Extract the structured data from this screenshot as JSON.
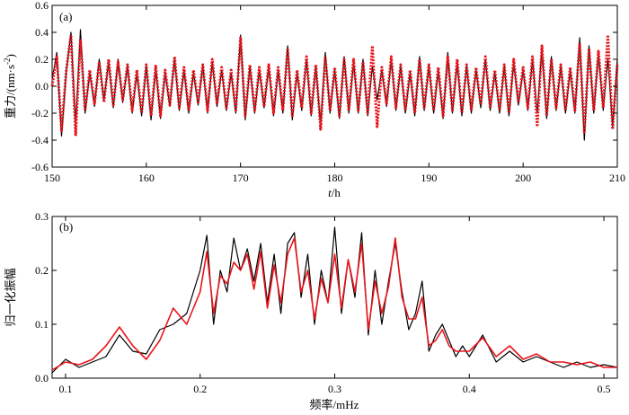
{
  "colors": {
    "black_series": "#000000",
    "red_series": "#e8141b"
  },
  "chart_data": [
    {
      "panel": "(a)",
      "type": "line",
      "xlabel_italic": "t",
      "xlabel_rest": "/h",
      "ylabel_main": "重力/(nm·s",
      "ylabel_sup": "-2",
      "ylabel_close": ")",
      "xlim": [
        150,
        210
      ],
      "ylim": [
        -0.6,
        0.6
      ],
      "xticks": [
        150,
        160,
        170,
        180,
        190,
        200,
        210
      ],
      "xtick_labels": [
        "150",
        "160",
        "170",
        "180",
        "190",
        "200",
        "210"
      ],
      "yticks": [
        -0.6,
        -0.4,
        -0.2,
        0.0,
        0.2,
        0.4,
        0.6
      ],
      "ytick_labels": [
        "-0.6",
        "-0.4",
        "-0.2",
        "0.0",
        "0.2",
        "0.4",
        "0.6"
      ],
      "series": [
        {
          "color": "#000000",
          "style": "solid",
          "x": [
            150.0,
            150.5,
            151.0,
            151.5,
            152.0,
            152.5,
            153.0,
            153.5,
            154.0,
            154.5,
            155.0,
            155.5,
            156.0,
            156.5,
            157.0,
            157.5,
            158.0,
            158.5,
            159.0,
            159.5,
            160.0,
            160.5,
            161.0,
            161.5,
            162.0,
            162.5,
            163.0,
            163.5,
            164.0,
            164.5,
            165.0,
            165.5,
            166.0,
            166.5,
            167.0,
            167.5,
            168.0,
            168.5,
            169.0,
            169.5,
            170.0,
            170.5,
            171.0,
            171.5,
            172.0,
            172.5,
            173.0,
            173.5,
            174.0,
            174.5,
            175.0,
            175.5,
            176.0,
            176.5,
            177.0,
            177.5,
            178.0,
            178.5,
            179.0,
            179.5,
            180.0,
            180.5,
            181.0,
            181.5,
            182.0,
            182.5,
            183.0,
            183.5,
            184.0,
            184.5,
            185.0,
            185.5,
            186.0,
            186.5,
            187.0,
            187.5,
            188.0,
            188.5,
            189.0,
            189.5,
            190.0,
            190.5,
            191.0,
            191.5,
            192.0,
            192.5,
            193.0,
            193.5,
            194.0,
            194.5,
            195.0,
            195.5,
            196.0,
            196.5,
            197.0,
            197.5,
            198.0,
            198.5,
            199.0,
            199.5,
            200.0,
            200.5,
            201.0,
            201.5,
            202.0,
            202.5,
            203.0,
            203.5,
            204.0,
            204.5,
            205.0,
            205.5,
            206.0,
            206.5,
            207.0,
            207.5,
            208.0,
            208.5,
            209.0,
            209.5,
            210.0
          ],
          "y": [
            0.05,
            0.25,
            -0.37,
            0.1,
            0.4,
            -0.3,
            0.42,
            -0.2,
            0.1,
            -0.15,
            0.2,
            -0.1,
            0.18,
            -0.16,
            0.2,
            -0.12,
            0.15,
            -0.2,
            0.1,
            -0.22,
            0.15,
            -0.25,
            0.14,
            -0.24,
            0.1,
            -0.15,
            0.2,
            -0.18,
            0.12,
            -0.2,
            0.1,
            -0.14,
            0.15,
            -0.2,
            0.18,
            -0.15,
            0.12,
            -0.18,
            0.1,
            -0.2,
            0.38,
            -0.25,
            0.15,
            -0.2,
            0.12,
            -0.16,
            0.15,
            -0.22,
            0.12,
            -0.2,
            0.3,
            -0.25,
            0.1,
            -0.18,
            0.2,
            -0.22,
            0.15,
            -0.3,
            0.25,
            -0.2,
            0.12,
            -0.24,
            0.22,
            -0.2,
            0.18,
            -0.2,
            0.2,
            -0.22,
            0.15,
            -0.1,
            0.12,
            -0.15,
            0.2,
            -0.18,
            0.15,
            -0.2,
            0.1,
            -0.22,
            0.22,
            -0.18,
            0.15,
            -0.2,
            0.12,
            -0.24,
            0.25,
            -0.2,
            0.18,
            -0.22,
            0.15,
            -0.2,
            0.12,
            -0.16,
            0.2,
            -0.18,
            0.1,
            -0.2,
            0.15,
            -0.22,
            0.18,
            -0.14,
            0.12,
            -0.18,
            0.2,
            -0.2,
            0.28,
            -0.24,
            0.22,
            -0.18,
            0.15,
            -0.2,
            0.12,
            -0.2,
            0.36,
            -0.4,
            0.3,
            -0.2,
            0.25,
            -0.18,
            0.2,
            -0.3,
            0.2
          ]
        },
        {
          "color": "#e8141b",
          "style": "dotted",
          "x": [
            150.0,
            150.5,
            151.0,
            151.5,
            152.0,
            152.5,
            153.0,
            153.5,
            154.0,
            154.5,
            155.0,
            155.5,
            156.0,
            156.5,
            157.0,
            157.5,
            158.0,
            158.5,
            159.0,
            159.5,
            160.0,
            160.5,
            161.0,
            161.5,
            162.0,
            162.5,
            163.0,
            163.5,
            164.0,
            164.5,
            165.0,
            165.5,
            166.0,
            166.5,
            167.0,
            167.5,
            168.0,
            168.5,
            169.0,
            169.5,
            170.0,
            170.5,
            171.0,
            171.5,
            172.0,
            172.5,
            173.0,
            173.5,
            174.0,
            174.5,
            175.0,
            175.5,
            176.0,
            176.5,
            177.0,
            177.5,
            178.0,
            178.5,
            179.0,
            179.5,
            180.0,
            180.5,
            181.0,
            181.5,
            182.0,
            182.5,
            183.0,
            183.5,
            184.0,
            184.5,
            185.0,
            185.5,
            186.0,
            186.5,
            187.0,
            187.5,
            188.0,
            188.5,
            189.0,
            189.5,
            190.0,
            190.5,
            191.0,
            191.5,
            192.0,
            192.5,
            193.0,
            193.5,
            194.0,
            194.5,
            195.0,
            195.5,
            196.0,
            196.5,
            197.0,
            197.5,
            198.0,
            198.5,
            199.0,
            199.5,
            200.0,
            200.5,
            201.0,
            201.5,
            202.0,
            202.5,
            203.0,
            203.5,
            204.0,
            204.5,
            205.0,
            205.5,
            206.0,
            206.5,
            207.0,
            207.5,
            208.0,
            208.5,
            209.0,
            209.5,
            210.0
          ],
          "y": [
            0.0,
            0.22,
            -0.33,
            0.12,
            0.38,
            -0.36,
            0.35,
            -0.18,
            0.12,
            -0.13,
            0.18,
            -0.12,
            0.2,
            -0.14,
            0.18,
            -0.1,
            0.16,
            -0.18,
            0.12,
            -0.2,
            0.16,
            -0.22,
            0.15,
            -0.22,
            0.12,
            -0.14,
            0.22,
            -0.16,
            0.14,
            -0.18,
            0.12,
            -0.12,
            0.16,
            -0.18,
            0.2,
            -0.13,
            0.14,
            -0.16,
            0.12,
            -0.18,
            0.36,
            -0.22,
            0.16,
            -0.18,
            0.14,
            -0.15,
            0.16,
            -0.2,
            0.14,
            -0.18,
            0.28,
            -0.22,
            0.12,
            -0.16,
            0.22,
            -0.2,
            0.16,
            -0.32,
            0.22,
            -0.18,
            0.14,
            -0.22,
            0.2,
            -0.18,
            0.2,
            -0.18,
            0.18,
            -0.2,
            0.3,
            -0.3,
            0.14,
            -0.13,
            0.22,
            -0.16,
            0.16,
            -0.18,
            0.12,
            -0.2,
            0.2,
            -0.16,
            0.16,
            -0.18,
            0.14,
            -0.22,
            0.22,
            -0.18,
            0.2,
            -0.2,
            0.16,
            -0.18,
            0.14,
            -0.14,
            0.22,
            -0.16,
            0.12,
            -0.18,
            0.16,
            -0.2,
            0.2,
            -0.12,
            0.14,
            -0.16,
            0.22,
            -0.3,
            0.3,
            -0.22,
            0.2,
            -0.16,
            0.16,
            -0.18,
            0.14,
            -0.18,
            0.32,
            -0.34,
            0.28,
            -0.18,
            0.26,
            -0.16,
            0.38,
            -0.32,
            0.16
          ]
        }
      ]
    },
    {
      "panel": "(b)",
      "type": "line",
      "xlabel": "频率/mHz",
      "ylabel": "归一化振幅",
      "xlim": [
        0.09,
        0.51
      ],
      "ylim": [
        0.0,
        0.3
      ],
      "xticks": [
        0.1,
        0.2,
        0.3,
        0.4,
        0.5
      ],
      "xtick_labels": [
        "0.1",
        "0.2",
        "0.3",
        "0.4",
        "0.5"
      ],
      "yticks": [
        0.0,
        0.1,
        0.2,
        0.3
      ],
      "ytick_labels": [
        "0.0",
        "0.1",
        "0.2",
        "0.3"
      ],
      "series": [
        {
          "color": "#000000",
          "style": "solid",
          "x": [
            0.09,
            0.1,
            0.11,
            0.12,
            0.13,
            0.14,
            0.15,
            0.16,
            0.17,
            0.18,
            0.19,
            0.2,
            0.205,
            0.21,
            0.215,
            0.22,
            0.225,
            0.23,
            0.235,
            0.24,
            0.245,
            0.25,
            0.255,
            0.26,
            0.265,
            0.27,
            0.275,
            0.28,
            0.285,
            0.29,
            0.295,
            0.3,
            0.305,
            0.31,
            0.315,
            0.32,
            0.325,
            0.33,
            0.335,
            0.34,
            0.345,
            0.35,
            0.355,
            0.36,
            0.365,
            0.37,
            0.375,
            0.38,
            0.385,
            0.39,
            0.395,
            0.4,
            0.41,
            0.42,
            0.43,
            0.44,
            0.45,
            0.46,
            0.47,
            0.48,
            0.49,
            0.5,
            0.51
          ],
          "y": [
            0.01,
            0.035,
            0.02,
            0.03,
            0.04,
            0.08,
            0.05,
            0.045,
            0.09,
            0.1,
            0.12,
            0.2,
            0.265,
            0.1,
            0.2,
            0.16,
            0.26,
            0.2,
            0.24,
            0.18,
            0.25,
            0.14,
            0.23,
            0.12,
            0.25,
            0.27,
            0.15,
            0.23,
            0.1,
            0.2,
            0.14,
            0.28,
            0.12,
            0.22,
            0.15,
            0.27,
            0.08,
            0.2,
            0.1,
            0.18,
            0.25,
            0.16,
            0.09,
            0.12,
            0.18,
            0.05,
            0.08,
            0.1,
            0.07,
            0.04,
            0.06,
            0.04,
            0.08,
            0.03,
            0.05,
            0.03,
            0.04,
            0.03,
            0.02,
            0.03,
            0.02,
            0.025,
            0.02
          ]
        },
        {
          "color": "#e8141b",
          "style": "solid",
          "x": [
            0.09,
            0.1,
            0.11,
            0.12,
            0.13,
            0.14,
            0.15,
            0.16,
            0.17,
            0.18,
            0.19,
            0.2,
            0.205,
            0.21,
            0.215,
            0.22,
            0.225,
            0.23,
            0.235,
            0.24,
            0.245,
            0.25,
            0.255,
            0.26,
            0.265,
            0.27,
            0.275,
            0.28,
            0.285,
            0.29,
            0.295,
            0.3,
            0.305,
            0.31,
            0.315,
            0.32,
            0.325,
            0.33,
            0.335,
            0.34,
            0.345,
            0.35,
            0.355,
            0.36,
            0.365,
            0.37,
            0.375,
            0.38,
            0.385,
            0.39,
            0.395,
            0.4,
            0.41,
            0.42,
            0.43,
            0.44,
            0.45,
            0.46,
            0.47,
            0.48,
            0.49,
            0.5,
            0.51
          ],
          "y": [
            0.015,
            0.03,
            0.025,
            0.035,
            0.06,
            0.095,
            0.06,
            0.035,
            0.07,
            0.13,
            0.1,
            0.16,
            0.235,
            0.12,
            0.19,
            0.175,
            0.215,
            0.2,
            0.23,
            0.165,
            0.235,
            0.13,
            0.21,
            0.14,
            0.23,
            0.26,
            0.16,
            0.2,
            0.11,
            0.185,
            0.14,
            0.23,
            0.13,
            0.22,
            0.16,
            0.25,
            0.09,
            0.18,
            0.12,
            0.17,
            0.26,
            0.15,
            0.11,
            0.11,
            0.15,
            0.06,
            0.07,
            0.09,
            0.06,
            0.05,
            0.05,
            0.05,
            0.075,
            0.04,
            0.06,
            0.035,
            0.045,
            0.03,
            0.03,
            0.025,
            0.03,
            0.02,
            0.02
          ]
        }
      ]
    }
  ]
}
